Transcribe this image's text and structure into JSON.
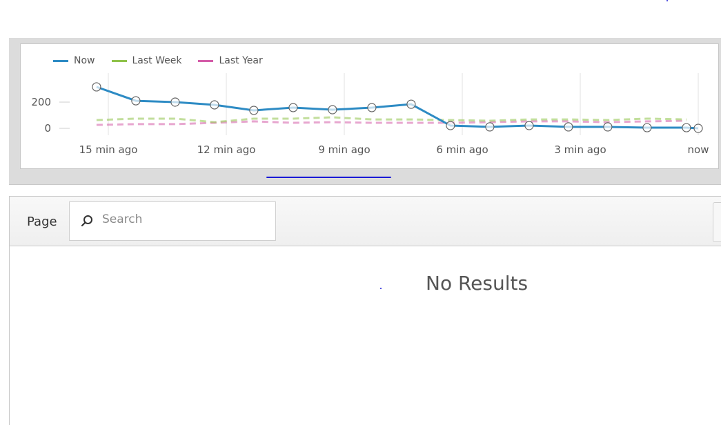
{
  "chart_data": {
    "type": "line",
    "xlabel": "",
    "ylabel": "",
    "x_tick_labels": [
      "15 min ago",
      "12 min ago",
      "9 min ago",
      "6 min ago",
      "3 min ago",
      "now"
    ],
    "x_tick_values_min_ago": [
      15,
      12,
      9,
      6,
      3,
      0
    ],
    "y_tick_labels": [
      "200",
      "0"
    ],
    "y_tick_values": [
      200,
      0
    ],
    "grid": "vertical",
    "legend_position": "top-left",
    "series": [
      {
        "name": "Now",
        "color": "#2d8bc4",
        "style": "solid",
        "markers": true,
        "x_min_ago": [
          15.3,
          14.3,
          13.3,
          12.3,
          11.3,
          10.3,
          9.3,
          8.3,
          7.3,
          6.3,
          5.3,
          4.3,
          3.3,
          2.3,
          1.3,
          0.3,
          0
        ],
        "values": [
          316,
          210,
          200,
          179,
          137,
          158,
          142,
          158,
          184,
          21,
          11,
          21,
          11,
          11,
          5,
          5,
          0
        ]
      },
      {
        "name": "Last Week",
        "color": "#8fc24a",
        "style": "dashed",
        "markers": false,
        "x_min_ago": [
          15.3,
          14.3,
          13.3,
          12.3,
          11.3,
          10.3,
          9.3,
          8.3,
          7.3,
          6.3,
          5.3,
          4.3,
          3.3,
          2.3,
          1.3,
          0.3
        ],
        "values": [
          63,
          74,
          74,
          47,
          74,
          74,
          84,
          68,
          68,
          63,
          58,
          68,
          68,
          63,
          74,
          68
        ]
      },
      {
        "name": "Last Year",
        "color": "#d45ca8",
        "style": "dashed",
        "markers": false,
        "x_min_ago": [
          15.3,
          14.3,
          13.3,
          12.3,
          11.3,
          10.3,
          9.3,
          8.3,
          7.3,
          6.3,
          5.3,
          4.3,
          3.3,
          2.3,
          1.3,
          0.3
        ],
        "values": [
          26,
          32,
          32,
          42,
          53,
          42,
          47,
          42,
          42,
          42,
          47,
          53,
          53,
          47,
          53,
          58
        ]
      }
    ]
  },
  "toolbar": {
    "page_label": "Page",
    "search_placeholder": "Search",
    "search_value": ""
  },
  "results": {
    "empty_text": "No Results"
  },
  "icons": {
    "search": "search-icon"
  }
}
